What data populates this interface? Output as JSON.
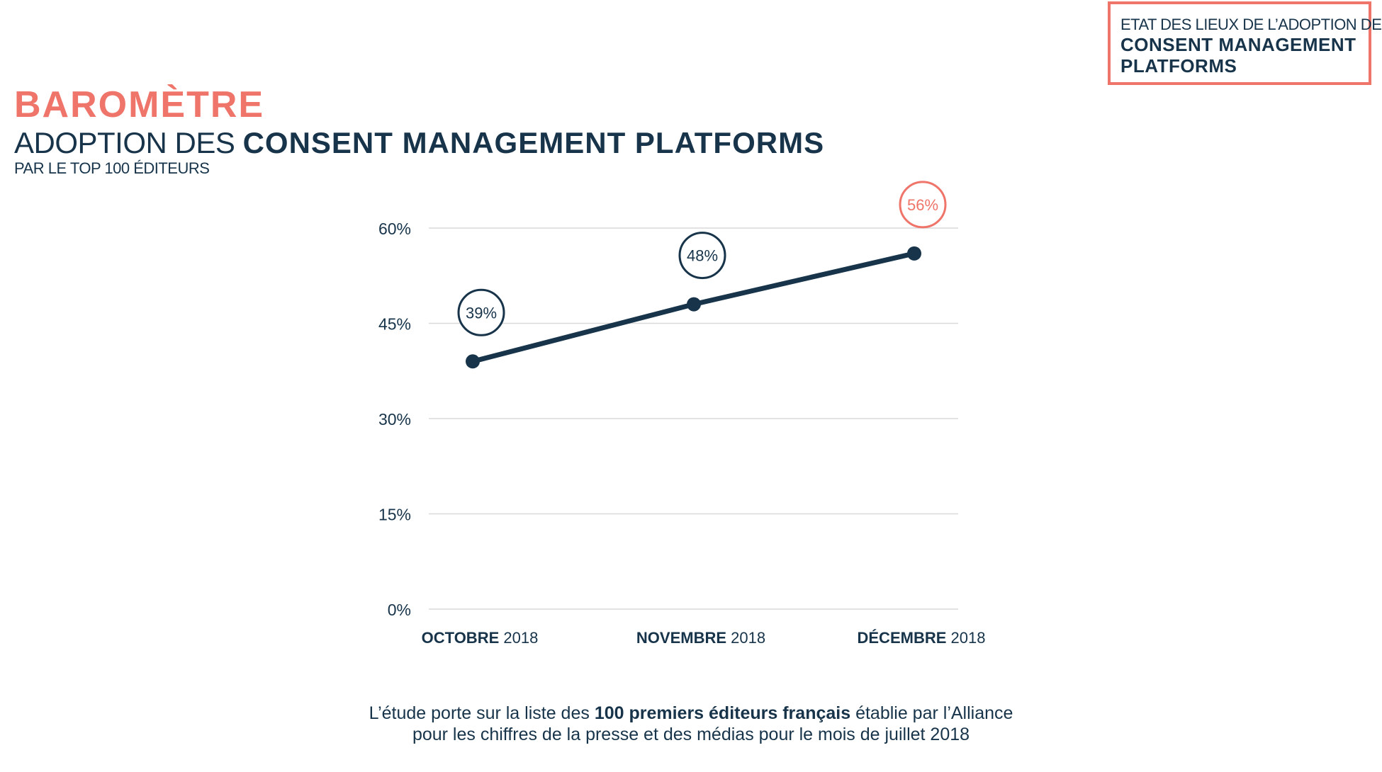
{
  "corner_box": {
    "line1": "ETAT DES LIEUX DE L’ADOPTION DES",
    "line2": "CONSENT MANAGEMENT",
    "line3": "PLATFORMS"
  },
  "heading": {
    "title": "BAROMÈTRE",
    "subtitle_light": "ADOPTION DES ",
    "subtitle_bold": "CONSENT MANAGEMENT PLATFORMS",
    "subtitle_small": "PAR LE TOP 100 ÉDITEURS"
  },
  "footnote": {
    "line1_pre": "L’étude porte sur la liste des ",
    "line1_bold": "100 premiers éditeurs français",
    "line1_post": " établie par l’Alliance",
    "line2": "pour les chiffres de la presse et des médias pour le mois de juillet 2018"
  },
  "colors": {
    "accent": "#ef746a",
    "navy": "#17344a",
    "grid": "#d9d9d9"
  },
  "chart_data": {
    "type": "line",
    "categories": [
      {
        "month": "OCTOBRE",
        "year": "2018"
      },
      {
        "month": "NOVEMBRE",
        "year": "2018"
      },
      {
        "month": "DÉCEMBRE",
        "year": "2018"
      }
    ],
    "series": [
      {
        "values": [
          39,
          48,
          56
        ]
      }
    ],
    "data_labels": [
      "39%",
      "48%",
      "56%"
    ],
    "highlight_index": 2,
    "ylim": [
      0,
      60
    ],
    "yticks": [
      {
        "value": 0,
        "label": "0%"
      },
      {
        "value": 15,
        "label": "15%"
      },
      {
        "value": 30,
        "label": "30%"
      },
      {
        "value": 45,
        "label": "45%"
      },
      {
        "value": 60,
        "label": "60%"
      }
    ],
    "grid": true
  }
}
